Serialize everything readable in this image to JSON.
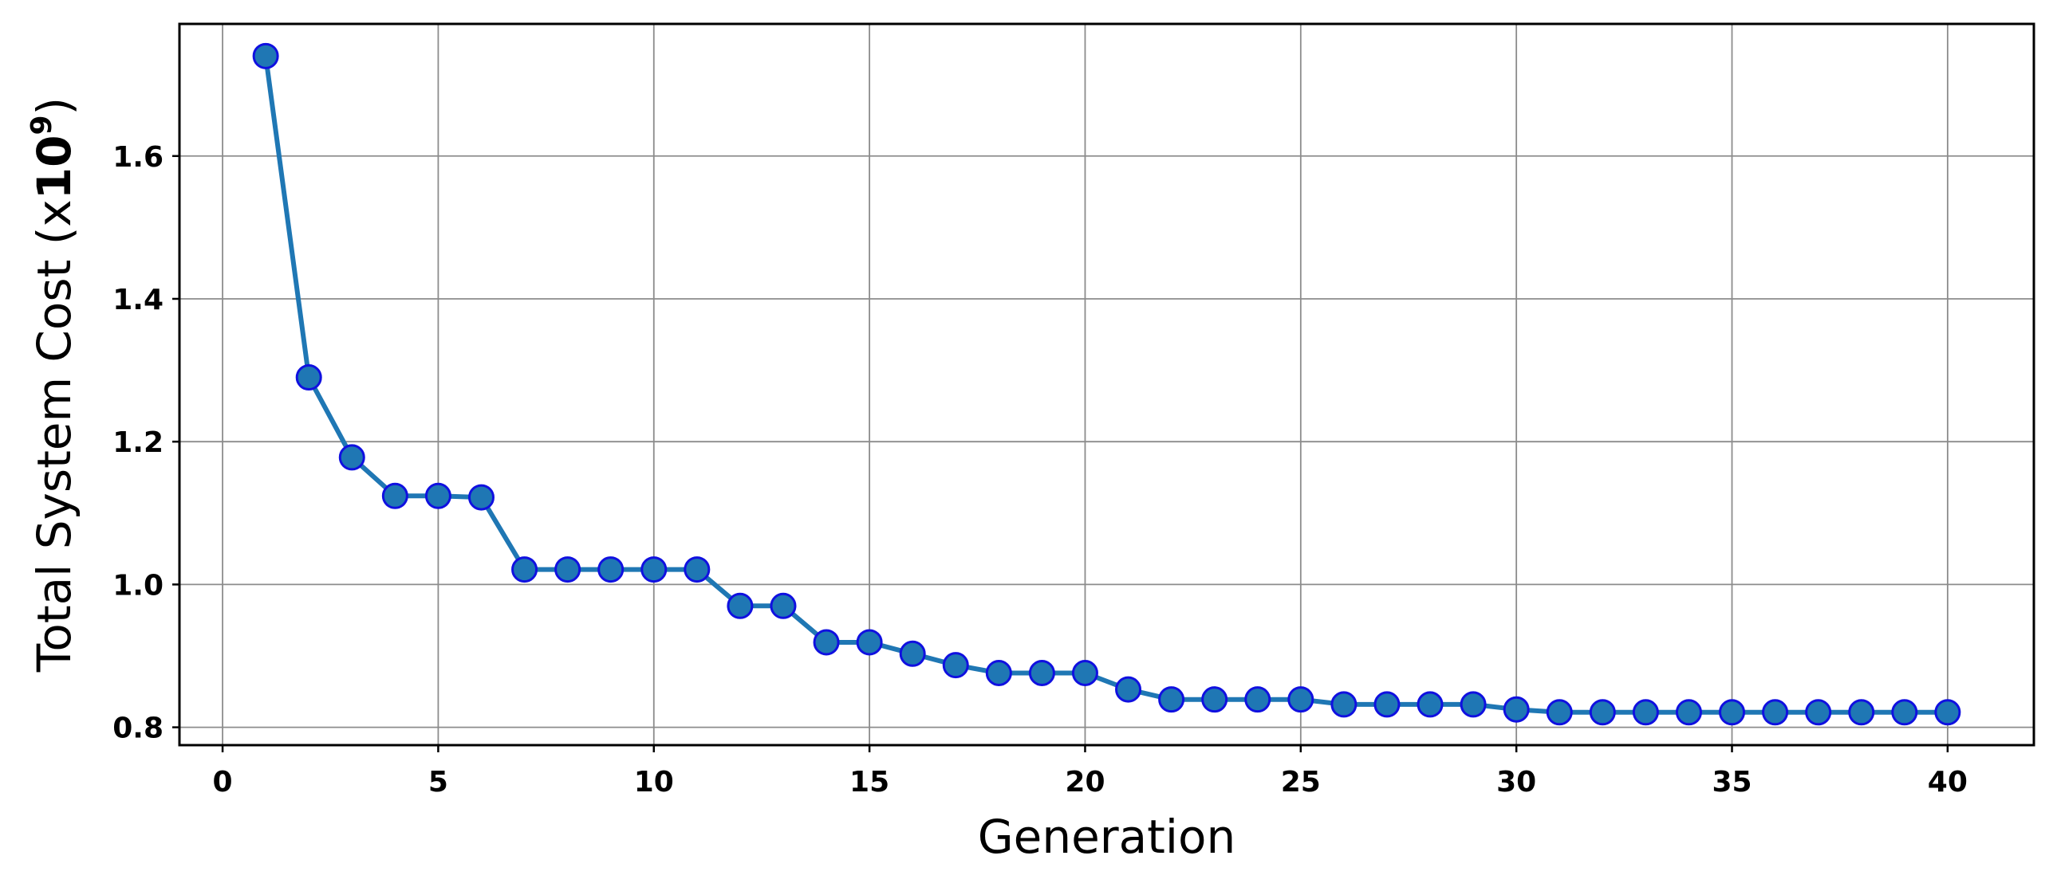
{
  "chart_data": {
    "type": "line",
    "xlabel": "Generation",
    "ylabel": "Total System Cost (x",
    "ylabel_sup_base": "10",
    "ylabel_sup_exp": "9",
    "ylabel_close": ")",
    "xlim": [
      -1,
      42
    ],
    "ylim": [
      0.775,
      1.785
    ],
    "x_ticks": [
      0,
      5,
      10,
      15,
      20,
      25,
      30,
      35,
      40
    ],
    "y_ticks": [
      0.8,
      1.0,
      1.2,
      1.4,
      1.6
    ],
    "y_tick_labels": [
      "0.8",
      "1.0",
      "1.2",
      "1.4",
      "1.6"
    ],
    "grid": true,
    "line_color": "#1f77b4",
    "marker_fill": "#1f77b4",
    "marker_edge": "#1010e0",
    "x": [
      1,
      2,
      3,
      4,
      5,
      6,
      7,
      8,
      9,
      10,
      11,
      12,
      13,
      14,
      15,
      16,
      17,
      18,
      19,
      20,
      21,
      22,
      23,
      24,
      25,
      26,
      27,
      28,
      29,
      30,
      31,
      32,
      33,
      34,
      35,
      36,
      37,
      38,
      39,
      40
    ],
    "y": [
      1.74,
      1.29,
      1.178,
      1.124,
      1.124,
      1.122,
      1.021,
      1.021,
      1.021,
      1.021,
      1.021,
      0.97,
      0.97,
      0.919,
      0.919,
      0.903,
      0.887,
      0.876,
      0.876,
      0.876,
      0.853,
      0.839,
      0.839,
      0.839,
      0.839,
      0.832,
      0.832,
      0.832,
      0.832,
      0.825,
      0.821,
      0.821,
      0.821,
      0.821,
      0.821,
      0.821,
      0.821,
      0.821,
      0.821,
      0.821
    ]
  }
}
